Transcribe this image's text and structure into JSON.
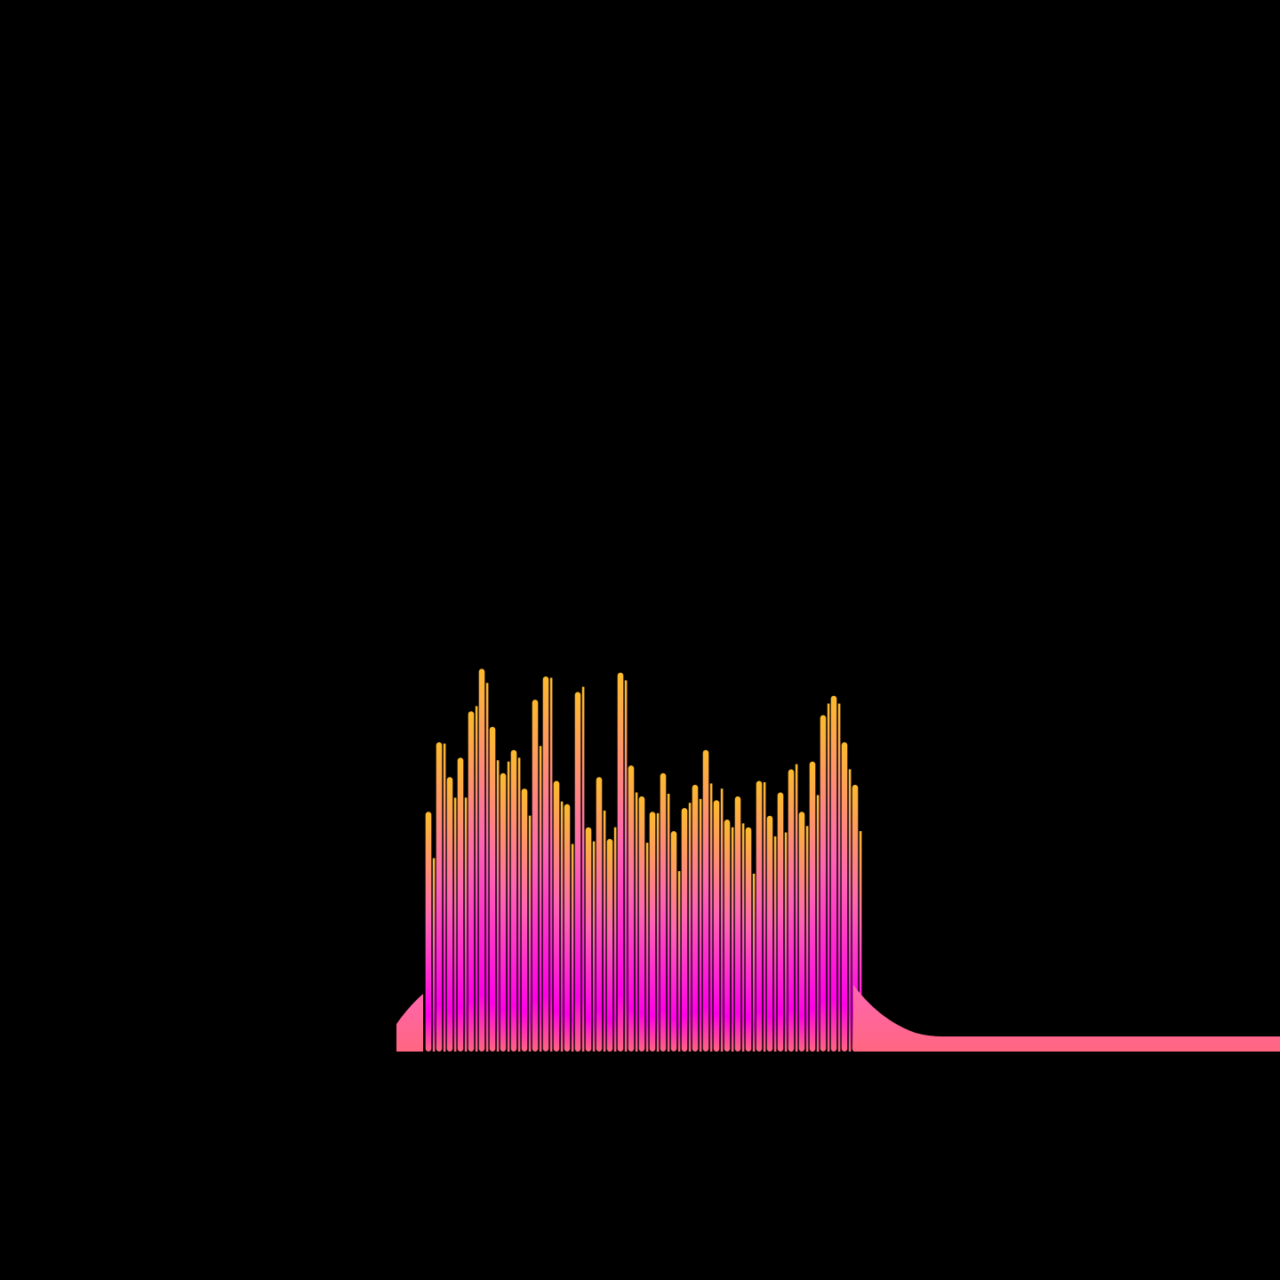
{
  "background_color": "#000000",
  "visualization": {
    "kind": "audio waveform",
    "gradient_colors": {
      "top": "#fdbb2d",
      "middle": "#ff66b2",
      "bottom": "#ff00e6",
      "baseline": "#ff6680"
    },
    "relative_levels": [
      0.62,
      0.8,
      0.71,
      0.76,
      0.88,
      0.99,
      0.84,
      0.72,
      0.78,
      0.68,
      0.91,
      0.97,
      0.7,
      0.64,
      0.93,
      0.58,
      0.71,
      0.55,
      0.98,
      0.74,
      0.66,
      0.62,
      0.72,
      0.57,
      0.63,
      0.69,
      0.78,
      0.65,
      0.6,
      0.66,
      0.58,
      0.7,
      0.61,
      0.67,
      0.73,
      0.62,
      0.75,
      0.87,
      0.92,
      0.8,
      0.69
    ]
  }
}
